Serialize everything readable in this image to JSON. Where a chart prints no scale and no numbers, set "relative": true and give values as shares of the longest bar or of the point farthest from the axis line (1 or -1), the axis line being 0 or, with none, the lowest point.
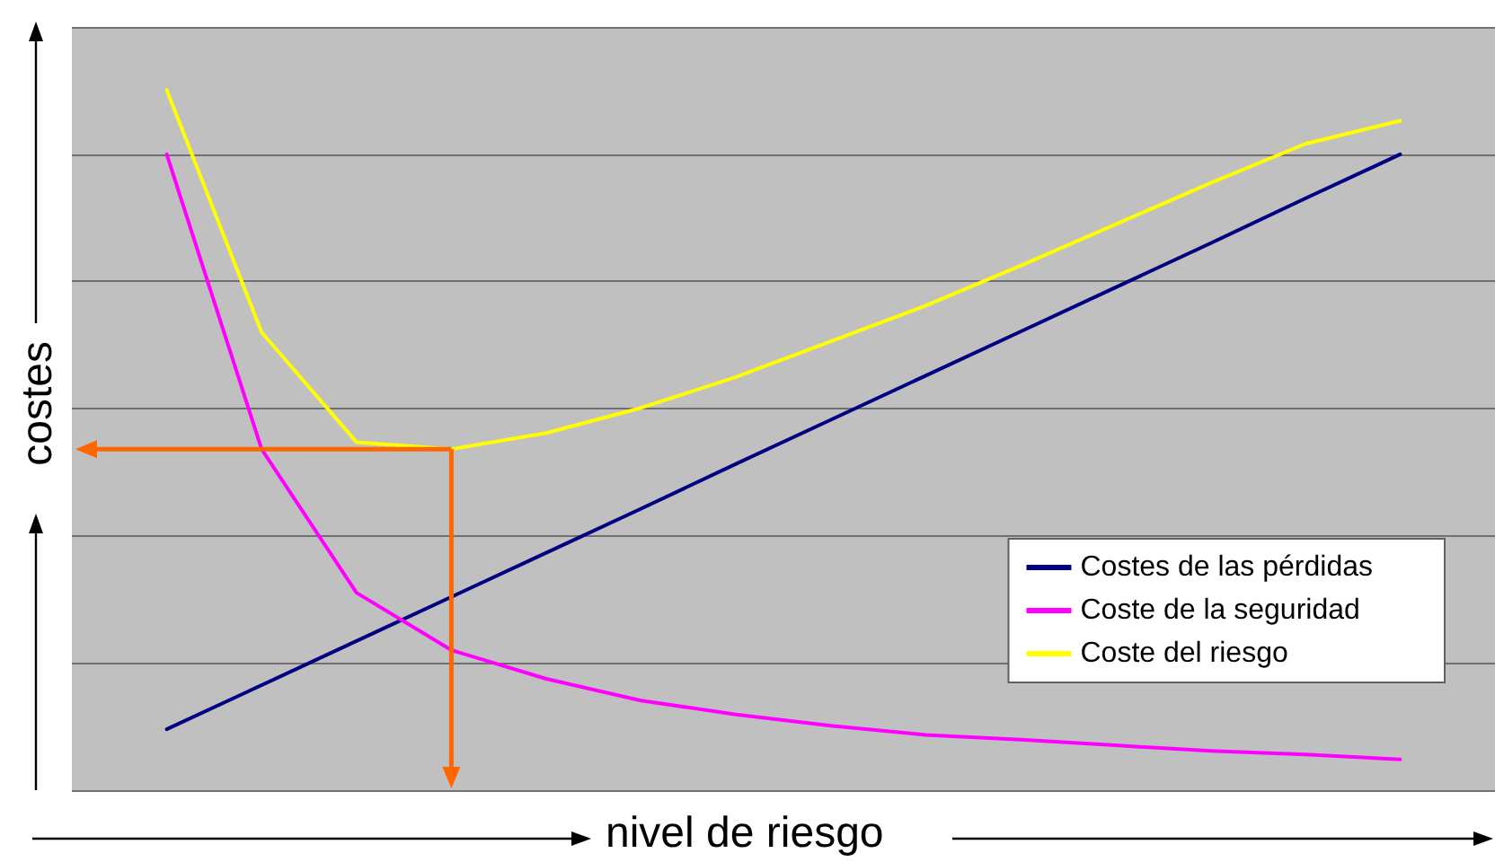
{
  "chart_data": {
    "type": "line",
    "relative": true,
    "xlabel": "nivel de riesgo",
    "ylabel": "costes",
    "categories": [
      null,
      null,
      null,
      null,
      null,
      null,
      null,
      null,
      null,
      null,
      null,
      null,
      null,
      null
    ],
    "series": [
      {
        "name": "Costes de las pérdidas",
        "color": "#000080",
        "values": [
          0.087,
          0.15,
          0.213,
          0.276,
          0.339,
          0.402,
          0.466,
          0.529,
          0.592,
          0.655,
          0.718,
          0.781,
          0.845,
          0.908
        ]
      },
      {
        "name": "Coste de la seguridad",
        "color": "#ff00ff",
        "values": [
          0.908,
          0.487,
          0.282,
          0.2,
          0.159,
          0.128,
          0.108,
          0.092,
          0.079,
          0.072,
          0.064,
          0.056,
          0.051,
          0.044
        ]
      },
      {
        "name": "Coste del riesgo",
        "color": "#ffff00",
        "values": [
          1.0,
          0.654,
          0.497,
          0.487,
          0.51,
          0.546,
          0.59,
          0.641,
          0.692,
          0.749,
          0.808,
          0.867,
          0.923,
          0.956
        ]
      }
    ],
    "grid": "y",
    "legend": "bottom right",
    "marker": "none",
    "line_style": "solid"
  }
}
